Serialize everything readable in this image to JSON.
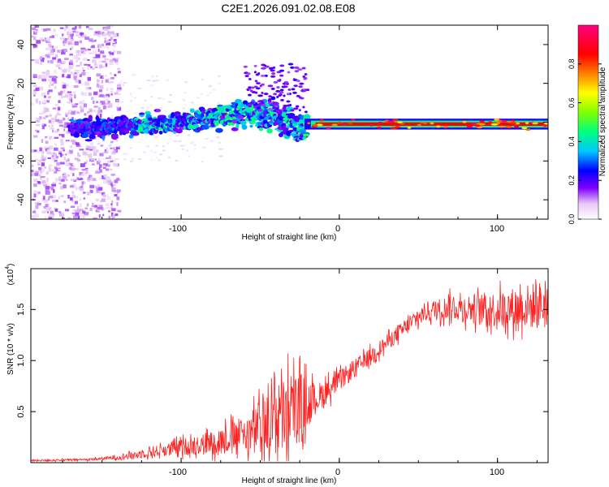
{
  "title": "C2E1.2026.091.02.08.E08",
  "chart_data": [
    {
      "type": "heatmap",
      "title": "C2E1.2026.091.02.08.E08",
      "xlabel": "Height of straight line (km)",
      "ylabel": "Frequency (Hz)",
      "xlim": [
        -195,
        132
      ],
      "ylim": [
        -50,
        50
      ],
      "xticks": [
        -100,
        0,
        100
      ],
      "yticks": [
        -40,
        -20,
        0,
        20,
        40
      ],
      "xtick_labels": [
        "-100",
        "0",
        "100"
      ],
      "ytick_labels": [
        "-40",
        "-20",
        "0",
        "20",
        "40"
      ],
      "colorbar": {
        "label": "Normalized spectral amplitude",
        "range": [
          0,
          1
        ],
        "ticks": [
          0.0,
          0.2,
          0.4,
          0.6,
          0.8
        ],
        "tick_labels": [
          "0.0",
          "0.2",
          "0.4",
          "0.6",
          "0.8"
        ],
        "colormap": [
          "#ffffff",
          "#e0c0f0",
          "#8000ff",
          "#0000ff",
          "#00c8ff",
          "#00ff80",
          "#80ff00",
          "#ffff00",
          "#ff8000",
          "#ff0000",
          "#ff0080"
        ]
      },
      "ridge": {
        "description_points_x": [
          -195,
          -150,
          -100,
          -60,
          -40,
          -25,
          -20,
          0,
          100,
          132
        ],
        "center_frequency_hz": [
          -3,
          -3,
          0,
          5,
          3,
          -3,
          -1,
          -1,
          -1,
          -1
        ]
      }
    },
    {
      "type": "line",
      "xlabel": "Height of straight line (km)",
      "ylabel": "SNR (10 * v/v)",
      "y_multiplier_label": "(x10",
      "y_multiplier_exp": "4",
      "xlim": [
        -195,
        132
      ],
      "ylim": [
        0,
        1.9
      ],
      "xticks": [
        -100,
        0,
        100
      ],
      "yticks": [
        0.5,
        1.0,
        1.5
      ],
      "xtick_labels": [
        "-100",
        "0",
        "100"
      ],
      "ytick_labels": [
        "0.5",
        "1.0",
        "1.5"
      ],
      "color": "#ff2020",
      "series": [
        {
          "name": "SNR",
          "x": [
            -195,
            -160,
            -140,
            -120,
            -100,
            -80,
            -60,
            -45,
            -35,
            -25,
            -15,
            0,
            20,
            40,
            55,
            70,
            100,
            132
          ],
          "mean": [
            0.02,
            0.03,
            0.05,
            0.1,
            0.15,
            0.2,
            0.28,
            0.38,
            0.45,
            0.55,
            0.62,
            0.8,
            1.05,
            1.3,
            1.48,
            1.52,
            1.5,
            1.55
          ],
          "spread": [
            0.01,
            0.01,
            0.02,
            0.05,
            0.08,
            0.12,
            0.18,
            0.3,
            0.4,
            0.35,
            0.15,
            0.1,
            0.08,
            0.08,
            0.1,
            0.12,
            0.18,
            0.25
          ]
        }
      ]
    }
  ]
}
